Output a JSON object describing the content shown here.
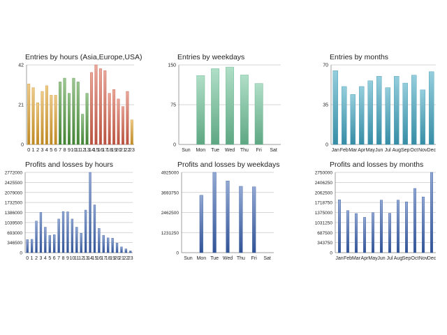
{
  "colors": {
    "orange": "#e0a12a",
    "green": "#4e9a3c",
    "red": "#d9614a",
    "mint": "#6fc59a",
    "teal": "#3fa6c2",
    "blue": "#3a62b0",
    "grid": "#c8c8c8",
    "axis": "#888888",
    "text": "#222222"
  },
  "chart_data": [
    {
      "type": "bar",
      "title": "Entries by hours (Asia,Europe,USA)",
      "categories": [
        "0",
        "1",
        "2",
        "3",
        "4",
        "5",
        "6",
        "7",
        "8",
        "9",
        "10",
        "11",
        "12",
        "13",
        "14",
        "15",
        "16",
        "17",
        "18",
        "19",
        "20",
        "21",
        "22",
        "23"
      ],
      "values": [
        32,
        30,
        22,
        28,
        31,
        26,
        26,
        33,
        35,
        27,
        35,
        33,
        16,
        27,
        38,
        42,
        40,
        39,
        27,
        29,
        24,
        20,
        28,
        13
      ],
      "bar_colors": [
        "orange",
        "orange",
        "orange",
        "orange",
        "orange",
        "orange",
        "orange",
        "green",
        "green",
        "green",
        "green",
        "green",
        "green",
        "green",
        "red",
        "red",
        "red",
        "red",
        "red",
        "red",
        "red",
        "red",
        "red",
        "orange"
      ],
      "yticks": [
        "0",
        "21",
        "42"
      ],
      "ylim": [
        0,
        42
      ],
      "grid": true
    },
    {
      "type": "bar",
      "title": "Entries by weekdays",
      "categories": [
        "Sun",
        "Mon",
        "Tue",
        "Wed",
        "Thu",
        "Fri",
        "Sat"
      ],
      "values": [
        0,
        130,
        143,
        146,
        131,
        115,
        0
      ],
      "bar_color": "mint",
      "yticks": [
        "0",
        "75",
        "150"
      ],
      "ylim": [
        0,
        150
      ],
      "grid": true
    },
    {
      "type": "bar",
      "title": "Entries by months",
      "categories": [
        "Jan",
        "Feb",
        "Mar",
        "Apr",
        "May",
        "Jun",
        "Jul",
        "Aug",
        "Sep",
        "Oct",
        "Nov",
        "Dec"
      ],
      "values": [
        65,
        51,
        44,
        51,
        56,
        60,
        50,
        60,
        54,
        61,
        48,
        64
      ],
      "bar_color": "teal",
      "yticks": [
        "0",
        "35",
        "70"
      ],
      "ylim": [
        0,
        70
      ],
      "grid": true
    },
    {
      "type": "bar",
      "title": "Profits and losses by hours",
      "categories": [
        "0",
        "1",
        "2",
        "3",
        "4",
        "5",
        "6",
        "7",
        "8",
        "9",
        "10",
        "11",
        "12",
        "13",
        "14",
        "15",
        "16",
        "17",
        "18",
        "19",
        "20",
        "21",
        "22",
        "23"
      ],
      "values": [
        450000,
        460000,
        1090000,
        1390000,
        880000,
        600000,
        620000,
        1160000,
        1420000,
        1410000,
        1160000,
        880000,
        670000,
        1470000,
        2772000,
        1650000,
        840000,
        600000,
        510000,
        500000,
        330000,
        200000,
        130000,
        60000
      ],
      "bar_color": "blue",
      "yticks": [
        "0",
        "346500",
        "693000",
        "1039500",
        "1386000",
        "1732500",
        "2079000",
        "2425500",
        "2772000"
      ],
      "ylim": [
        0,
        2772000
      ],
      "grid": true
    },
    {
      "type": "bar",
      "title": "Profits and losses by weekdays",
      "categories": [
        "Sun",
        "Mon",
        "Tue",
        "Wed",
        "Thu",
        "Fri",
        "Sat"
      ],
      "values": [
        0,
        3520000,
        4925000,
        4400000,
        4070000,
        4040000,
        0
      ],
      "bar_color": "blue",
      "yticks": [
        "0",
        "1231250",
        "2462500",
        "3693750",
        "4925000"
      ],
      "ylim": [
        0,
        4925000
      ],
      "grid": true
    },
    {
      "type": "bar",
      "title": "Profits and losses by months",
      "categories": [
        "Jan",
        "Feb",
        "Mar",
        "Apr",
        "May",
        "Jun",
        "Jul",
        "Aug",
        "Sep",
        "Oct",
        "Nov",
        "Dec"
      ],
      "values": [
        1810000,
        1440000,
        1340000,
        1210000,
        1370000,
        1800000,
        1350000,
        1800000,
        1740000,
        2200000,
        1910000,
        2750000
      ],
      "bar_color": "blue",
      "yticks": [
        "0",
        "343750",
        "687500",
        "1031250",
        "1375000",
        "1718750",
        "2062500",
        "2406250",
        "2750000"
      ],
      "ylim": [
        0,
        2750000
      ],
      "grid": true
    }
  ]
}
